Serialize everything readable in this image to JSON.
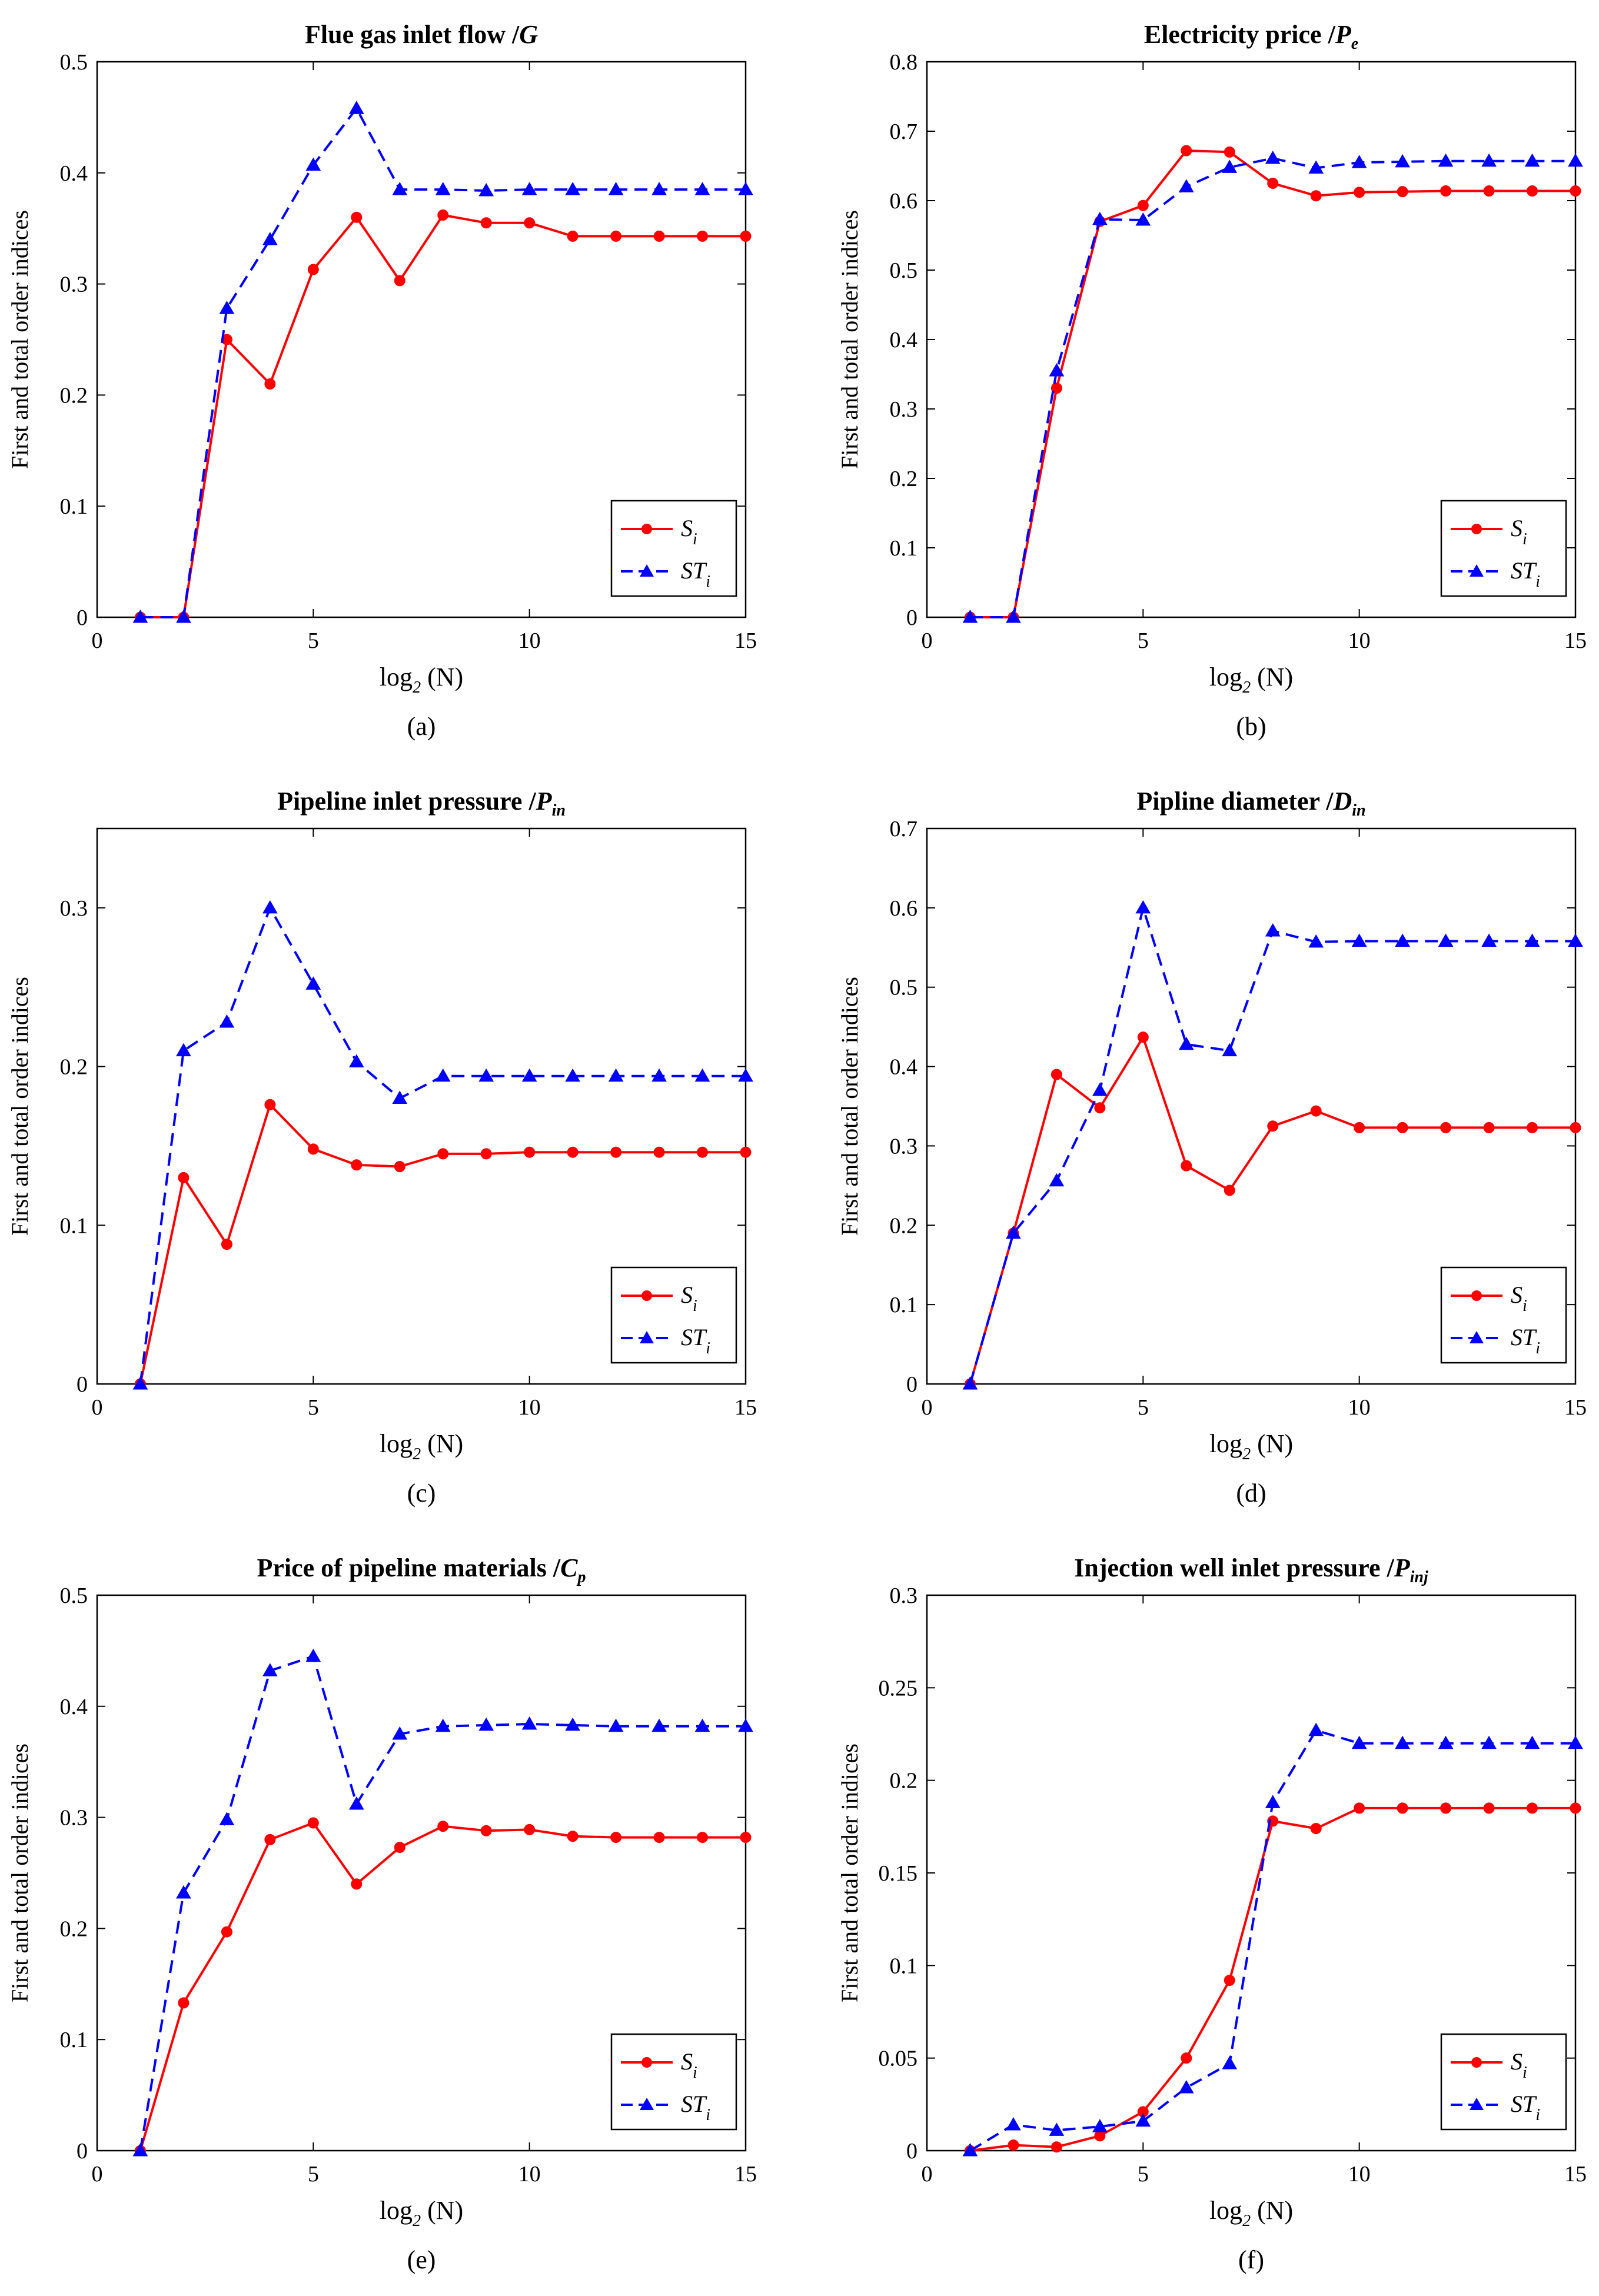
{
  "chart_data": [
    {
      "type": "line",
      "title": "Flue gas inlet flow /",
      "title_symbol": "G",
      "title_subscript": "",
      "caption": "(a)",
      "xlabel": "log",
      "xlabel_subscript": "2",
      "xlabel_suffix": " (N)",
      "ylabel": "First and total order indices",
      "xlim": [
        0,
        15
      ],
      "ylim": [
        0,
        0.5
      ],
      "xticks": [
        0,
        5,
        10,
        15
      ],
      "yticks": [
        0,
        0.1,
        0.2,
        0.3,
        0.4,
        0.5
      ],
      "ytick_labels": [
        "0",
        "0.1",
        "0.2",
        "0.3",
        "0.4",
        "0.5"
      ],
      "x": [
        1,
        2,
        3,
        4,
        5,
        6,
        7,
        8,
        9,
        10,
        11,
        12,
        13,
        14,
        15
      ],
      "legend_position": "bottom-right",
      "series": [
        {
          "name": "S",
          "name_subscript": "i",
          "color": "#ff0000",
          "marker": "circle",
          "dash": "solid",
          "values": [
            0,
            0,
            0.25,
            0.21,
            0.313,
            0.36,
            0.303,
            0.362,
            0.355,
            0.355,
            0.343,
            0.343,
            0.343,
            0.343,
            0.343
          ]
        },
        {
          "name": "ST",
          "name_subscript": "i",
          "color": "#0000ff",
          "marker": "triangle",
          "dash": "dashed",
          "values": [
            0,
            0,
            0.278,
            0.34,
            0.407,
            0.458,
            0.385,
            0.385,
            0.384,
            0.385,
            0.385,
            0.385,
            0.385,
            0.385,
            0.385
          ]
        }
      ]
    },
    {
      "type": "line",
      "title": "Electricity price /",
      "title_symbol": "P",
      "title_subscript": "e",
      "caption": "(b)",
      "xlabel": "log",
      "xlabel_subscript": "2",
      "xlabel_suffix": " (N)",
      "ylabel": "First and total order indices",
      "xlim": [
        0,
        15
      ],
      "ylim": [
        0,
        0.8
      ],
      "xticks": [
        0,
        5,
        10,
        15
      ],
      "yticks": [
        0,
        0.1,
        0.2,
        0.3,
        0.4,
        0.5,
        0.6,
        0.7,
        0.8
      ],
      "ytick_labels": [
        "0",
        "0.1",
        "0.2",
        "0.3",
        "0.4",
        "0.5",
        "0.6",
        "0.7",
        "0.8"
      ],
      "x": [
        1,
        2,
        3,
        4,
        5,
        6,
        7,
        8,
        9,
        10,
        11,
        12,
        13,
        14,
        15
      ],
      "legend_position": "bottom-right",
      "series": [
        {
          "name": "S",
          "name_subscript": "i",
          "color": "#ff0000",
          "marker": "circle",
          "dash": "solid",
          "values": [
            0,
            0,
            0.33,
            0.57,
            0.593,
            0.672,
            0.67,
            0.625,
            0.607,
            0.612,
            0.613,
            0.614,
            0.614,
            0.614,
            0.614
          ]
        },
        {
          "name": "ST",
          "name_subscript": "i",
          "color": "#0000ff",
          "marker": "triangle",
          "dash": "dashed",
          "values": [
            0,
            0,
            0.355,
            0.573,
            0.572,
            0.62,
            0.648,
            0.661,
            0.647,
            0.655,
            0.656,
            0.657,
            0.657,
            0.657,
            0.657
          ]
        }
      ]
    },
    {
      "type": "line",
      "title": "Pipeline inlet pressure /",
      "title_symbol": "P",
      "title_subscript": "in",
      "caption": "(c)",
      "xlabel": "log",
      "xlabel_subscript": "2",
      "xlabel_suffix": " (N)",
      "ylabel": "First and total order indices",
      "xlim": [
        0,
        15
      ],
      "ylim": [
        0,
        0.35
      ],
      "xticks": [
        0,
        5,
        10,
        15
      ],
      "yticks": [
        0,
        0.1,
        0.2,
        0.3
      ],
      "ytick_labels": [
        "0",
        "0.1",
        "0.2",
        "0.3"
      ],
      "x": [
        1,
        2,
        3,
        4,
        5,
        6,
        7,
        8,
        9,
        10,
        11,
        12,
        13,
        14,
        15
      ],
      "legend_position": "bottom-right",
      "series": [
        {
          "name": "S",
          "name_subscript": "i",
          "color": "#ff0000",
          "marker": "circle",
          "dash": "solid",
          "values": [
            0,
            0.13,
            0.088,
            0.176,
            0.148,
            0.138,
            0.137,
            0.145,
            0.145,
            0.146,
            0.146,
            0.146,
            0.146,
            0.146,
            0.146
          ]
        },
        {
          "name": "ST",
          "name_subscript": "i",
          "color": "#0000ff",
          "marker": "triangle",
          "dash": "dashed",
          "values": [
            0,
            0.21,
            0.228,
            0.3,
            0.252,
            0.203,
            0.18,
            0.194,
            0.194,
            0.194,
            0.194,
            0.194,
            0.194,
            0.194,
            0.194
          ]
        }
      ]
    },
    {
      "type": "line",
      "title": "Pipline diameter /",
      "title_symbol": "D",
      "title_subscript": "in",
      "caption": "(d)",
      "xlabel": "log",
      "xlabel_subscript": "2",
      "xlabel_suffix": " (N)",
      "ylabel": "First and total order indices",
      "xlim": [
        0,
        15
      ],
      "ylim": [
        0,
        0.7
      ],
      "xticks": [
        0,
        5,
        10,
        15
      ],
      "yticks": [
        0,
        0.1,
        0.2,
        0.3,
        0.4,
        0.5,
        0.6,
        0.7
      ],
      "ytick_labels": [
        "0",
        "0.1",
        "0.2",
        "0.3",
        "0.4",
        "0.5",
        "0.6",
        "0.7"
      ],
      "x": [
        1,
        2,
        3,
        4,
        5,
        6,
        7,
        8,
        9,
        10,
        11,
        12,
        13,
        14,
        15
      ],
      "legend_position": "bottom-right",
      "series": [
        {
          "name": "S",
          "name_subscript": "i",
          "color": "#ff0000",
          "marker": "circle",
          "dash": "solid",
          "values": [
            0,
            0.19,
            0.39,
            0.348,
            0.437,
            0.275,
            0.244,
            0.325,
            0.344,
            0.323,
            0.323,
            0.323,
            0.323,
            0.323,
            0.323
          ]
        },
        {
          "name": "ST",
          "name_subscript": "i",
          "color": "#0000ff",
          "marker": "triangle",
          "dash": "dashed",
          "values": [
            0,
            0.19,
            0.256,
            0.37,
            0.6,
            0.428,
            0.42,
            0.571,
            0.557,
            0.558,
            0.558,
            0.558,
            0.558,
            0.558,
            0.558
          ]
        }
      ]
    },
    {
      "type": "line",
      "title": "Price of pipeline materials /",
      "title_symbol": "C",
      "title_subscript": "p",
      "caption": "(e)",
      "xlabel": "log",
      "xlabel_subscript": "2",
      "xlabel_suffix": " (N)",
      "ylabel": "First and total order indices",
      "xlim": [
        0,
        15
      ],
      "ylim": [
        0,
        0.5
      ],
      "xticks": [
        0,
        5,
        10,
        15
      ],
      "yticks": [
        0,
        0.1,
        0.2,
        0.3,
        0.4,
        0.5
      ],
      "ytick_labels": [
        "0",
        "0.1",
        "0.2",
        "0.3",
        "0.4",
        "0.5"
      ],
      "x": [
        1,
        2,
        3,
        4,
        5,
        6,
        7,
        8,
        9,
        10,
        11,
        12,
        13,
        14,
        15
      ],
      "legend_position": "bottom-right",
      "series": [
        {
          "name": "S",
          "name_subscript": "i",
          "color": "#ff0000",
          "marker": "circle",
          "dash": "solid",
          "values": [
            0,
            0.133,
            0.197,
            0.28,
            0.295,
            0.24,
            0.273,
            0.292,
            0.288,
            0.289,
            0.283,
            0.282,
            0.282,
            0.282,
            0.282
          ]
        },
        {
          "name": "ST",
          "name_subscript": "i",
          "color": "#0000ff",
          "marker": "triangle",
          "dash": "dashed",
          "values": [
            0,
            0.232,
            0.298,
            0.432,
            0.445,
            0.312,
            0.375,
            0.382,
            0.383,
            0.384,
            0.383,
            0.382,
            0.382,
            0.382,
            0.382
          ]
        }
      ]
    },
    {
      "type": "line",
      "title": "Injection well inlet pressure /",
      "title_symbol": "P",
      "title_subscript": "inj",
      "caption": "(f)",
      "xlabel": "log",
      "xlabel_subscript": "2",
      "xlabel_suffix": " (N)",
      "ylabel": "First and total order indices",
      "xlim": [
        0,
        15
      ],
      "ylim": [
        0,
        0.3
      ],
      "xticks": [
        0,
        5,
        10,
        15
      ],
      "yticks": [
        0,
        0.05,
        0.1,
        0.15,
        0.2,
        0.25,
        0.3
      ],
      "ytick_labels": [
        "0",
        "0.05",
        "0.1",
        "0.15",
        "0.2",
        "0.25",
        "0.3"
      ],
      "x": [
        1,
        2,
        3,
        4,
        5,
        6,
        7,
        8,
        9,
        10,
        11,
        12,
        13,
        14,
        15
      ],
      "legend_position": "bottom-right",
      "series": [
        {
          "name": "S",
          "name_subscript": "i",
          "color": "#ff0000",
          "marker": "circle",
          "dash": "solid",
          "values": [
            0,
            0.003,
            0.002,
            0.008,
            0.021,
            0.05,
            0.092,
            0.178,
            0.174,
            0.185,
            0.185,
            0.185,
            0.185,
            0.185,
            0.185
          ]
        },
        {
          "name": "ST",
          "name_subscript": "i",
          "color": "#0000ff",
          "marker": "triangle",
          "dash": "dashed",
          "values": [
            0,
            0.014,
            0.011,
            0.013,
            0.016,
            0.034,
            0.047,
            0.188,
            0.227,
            0.22,
            0.22,
            0.22,
            0.22,
            0.22,
            0.22
          ]
        }
      ]
    }
  ]
}
